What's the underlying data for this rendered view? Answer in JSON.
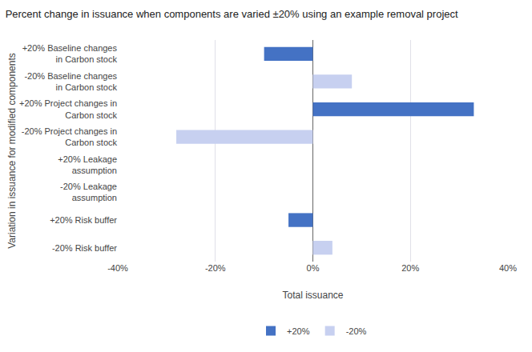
{
  "chart_data": {
    "type": "bar",
    "orientation": "horizontal",
    "title": "Percent change in issuance when components are varied ±20% using an example removal project",
    "xlabel": "Total issuance",
    "ylabel": "Variation in issuance for modified components",
    "categories": [
      "+20% Baseline changes\nin Carbon stock",
      "-20% Baseline changes\nin Carbon stock",
      "+20% Project changes in\nCarbon stock",
      "-20% Project changes in\nCarbon stock",
      "+20% Leakage\nassumption",
      "-20% Leakage\nassumption",
      "+20% Risk buffer",
      "-20% Risk buffer"
    ],
    "series": [
      {
        "name": "+20%",
        "color": "#4472c4",
        "values": [
          -10,
          null,
          33,
          null,
          0,
          null,
          -5,
          null
        ]
      },
      {
        "name": "-20%",
        "color": "#c7d0f0",
        "values": [
          null,
          8,
          null,
          -28,
          null,
          0,
          null,
          4
        ]
      }
    ],
    "xlim": [
      -40,
      40
    ],
    "xticks": [
      {
        "value": -40,
        "label": "-40%"
      },
      {
        "value": -20,
        "label": "-20%"
      },
      {
        "value": 0,
        "label": "0%"
      },
      {
        "value": 20,
        "label": "20%"
      },
      {
        "value": 40,
        "label": "40%"
      }
    ],
    "grid": true,
    "legend": "bottom"
  }
}
